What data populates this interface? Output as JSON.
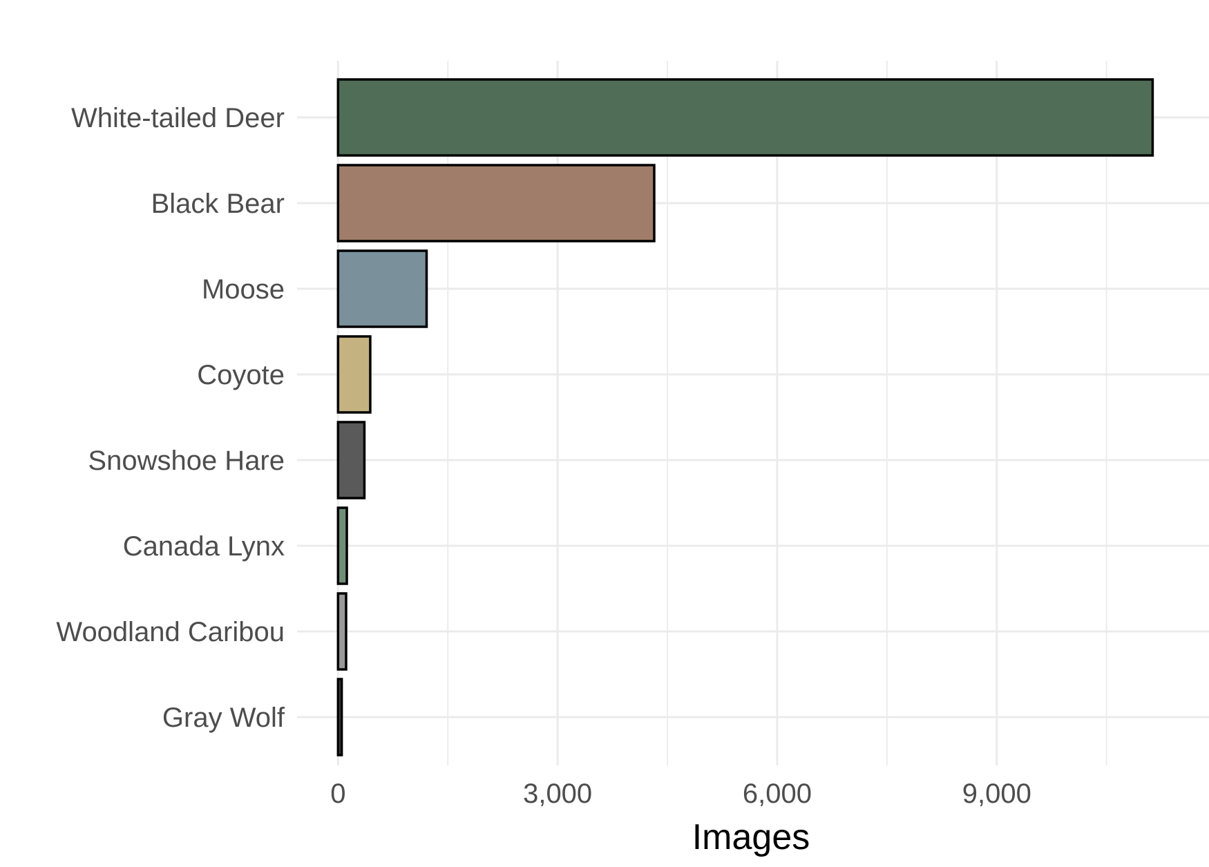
{
  "chart_data": {
    "type": "bar",
    "orientation": "horizontal",
    "title": "",
    "xlabel": "Images",
    "ylabel": "",
    "categories": [
      "White-tailed Deer",
      "Black Bear",
      "Moose",
      "Coyote",
      "Snowshoe Hare",
      "Canada Lynx",
      "Woodland Caribou",
      "Gray Wolf"
    ],
    "values": [
      11130,
      4320,
      1210,
      440,
      360,
      120,
      110,
      50
    ],
    "colors": [
      "#506e57",
      "#a07d6a",
      "#7a919c",
      "#c4b281",
      "#5a5a5a",
      "#6f8e77",
      "#999999",
      "#444444"
    ],
    "xlim": [
      -560,
      11900
    ],
    "x_ticks": [
      0,
      3000,
      6000,
      9000
    ],
    "x_tick_labels": [
      "0",
      "3,000",
      "6,000",
      "9,000"
    ],
    "x_minor_ticks": [
      1500,
      4500,
      7500,
      10500
    ],
    "grid": true,
    "legend": "none"
  }
}
